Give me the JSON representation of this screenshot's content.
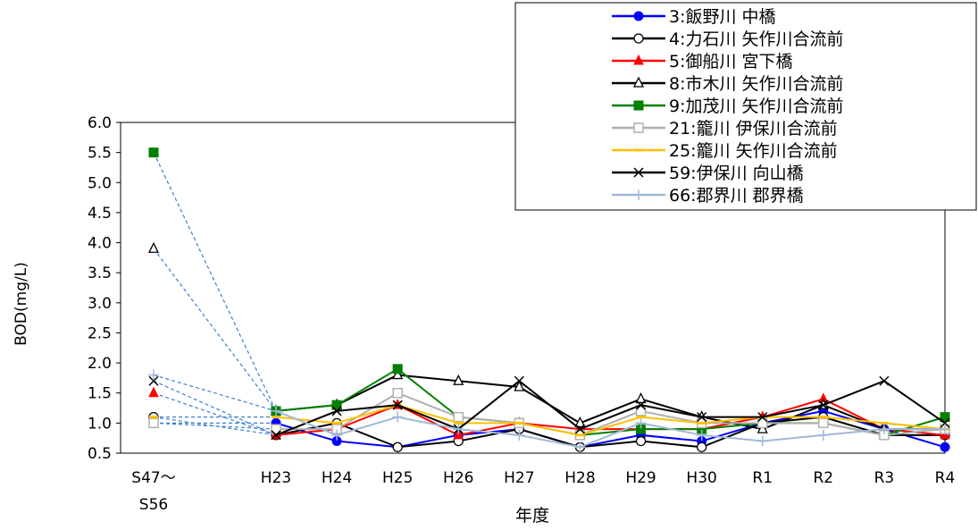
{
  "chart_data": {
    "type": "line",
    "title": "",
    "xlabel": "年度",
    "ylabel": "BOD(mg/L)",
    "ylim": [
      0.5,
      6.0
    ],
    "yticks": [
      "0.5",
      "1.0",
      "1.5",
      "2.0",
      "2.5",
      "3.0",
      "3.5",
      "4.0",
      "4.5",
      "5.0",
      "5.5",
      "6.0"
    ],
    "baseline_label": [
      "S47～",
      "S56"
    ],
    "categories": [
      "H23",
      "H24",
      "H25",
      "H26",
      "H27",
      "H28",
      "H29",
      "H30",
      "R1",
      "R2",
      "R3",
      "R4"
    ],
    "legend_position": "top-right",
    "grid": false,
    "series": [
      {
        "name": "3:飯野川 中橋",
        "color": "#0000ff",
        "marker": "circle-filled",
        "baseline": 1.0,
        "values": [
          1.0,
          0.7,
          0.6,
          0.8,
          0.9,
          0.6,
          0.8,
          0.7,
          1.0,
          1.2,
          0.9,
          0.6
        ]
      },
      {
        "name": "4:力石川 矢作川合流前",
        "color": "#000000",
        "marker": "circle-open",
        "baseline": 1.1,
        "values": [
          0.8,
          1.0,
          0.6,
          0.7,
          0.9,
          0.6,
          0.7,
          0.6,
          1.0,
          1.1,
          0.8,
          0.8
        ]
      },
      {
        "name": "5:御船川 宮下橋",
        "color": "#ff0000",
        "marker": "triangle-filled",
        "baseline": 1.5,
        "values": [
          0.8,
          0.9,
          1.3,
          0.8,
          1.0,
          0.9,
          0.9,
          0.9,
          1.1,
          1.4,
          0.9,
          0.8
        ]
      },
      {
        "name": "8:市木川 矢作川合流前",
        "color": "#000000",
        "marker": "triangle-open",
        "baseline": 3.9,
        "values": [
          1.2,
          1.3,
          1.8,
          1.7,
          1.6,
          1.0,
          1.4,
          1.1,
          0.9,
          1.3,
          0.9,
          0.9
        ]
      },
      {
        "name": "9:加茂川 矢作川合流前",
        "color": "#008000",
        "marker": "square-filled",
        "baseline": 5.5,
        "values": [
          1.2,
          1.3,
          1.9,
          1.1,
          1.0,
          0.8,
          0.9,
          0.9,
          1.0,
          1.0,
          0.8,
          1.1
        ]
      },
      {
        "name": "21:籠川 伊保川合流前",
        "color": "#b0b0b0",
        "marker": "square-open",
        "baseline": 1.0,
        "values": [
          0.9,
          0.9,
          1.5,
          1.1,
          1.0,
          0.8,
          1.2,
          1.0,
          1.0,
          1.0,
          0.8,
          0.9
        ]
      },
      {
        "name": "25:籠川 矢作川合流前",
        "color": "#ffc000",
        "marker": "dash",
        "baseline": 1.1,
        "values": [
          1.1,
          1.0,
          1.3,
          1.0,
          1.0,
          0.8,
          1.1,
          1.0,
          1.1,
          1.1,
          1.0,
          0.9
        ]
      },
      {
        "name": "59:伊保川 向山橋",
        "color": "#000000",
        "marker": "x",
        "baseline": 1.7,
        "values": [
          0.8,
          1.2,
          1.3,
          0.9,
          1.7,
          0.9,
          1.3,
          1.1,
          1.1,
          1.3,
          1.7,
          1.0
        ]
      },
      {
        "name": "66:郡界川 郡界橋",
        "color": "#a0b8d8",
        "marker": "plus",
        "baseline": 1.8,
        "values": [
          1.2,
          0.8,
          1.1,
          0.9,
          0.8,
          0.6,
          1.0,
          0.8,
          0.7,
          0.8,
          0.9,
          0.9
        ]
      }
    ]
  }
}
